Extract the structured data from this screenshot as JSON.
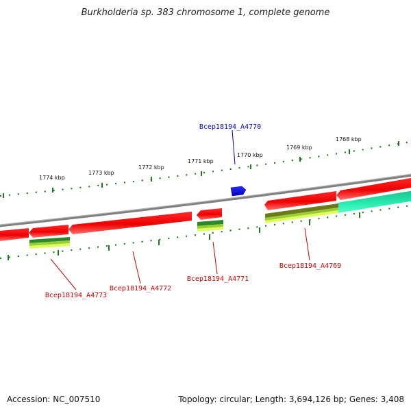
{
  "title": "Burkholderia sp. 383 chromosome 1, complete genome",
  "footer": {
    "accession": "Accession: NC_007510",
    "topology": "Topology: circular; Length: 3,694,126 bp; Genes: 3,408"
  },
  "ruler": {
    "labels": [
      "1774 kbp",
      "1773 kbp",
      "1772 kbp",
      "1771 kbp",
      "1770 kbp",
      "1769 kbp",
      "1768 kbp"
    ]
  },
  "genes": {
    "a4770": {
      "name": "Bcep18194_A4770",
      "color": "#0000cc"
    },
    "a4771": {
      "name": "Bcep18194_A4771",
      "color": "#cc0000"
    },
    "a4772": {
      "name": "Bcep18194_A4772",
      "color": "#cc0000"
    },
    "a4773": {
      "name": "Bcep18194_A4773",
      "color": "#cc0000"
    },
    "a4769": {
      "name": "Bcep18194_A4769",
      "color": "#cc0000"
    }
  },
  "colors": {
    "backbone": "#808080",
    "tick": "#1f7a1f",
    "gene_reverse": "#ee0000",
    "gene_forward": "#1010ee",
    "gene_teal": "#22e8aa"
  }
}
